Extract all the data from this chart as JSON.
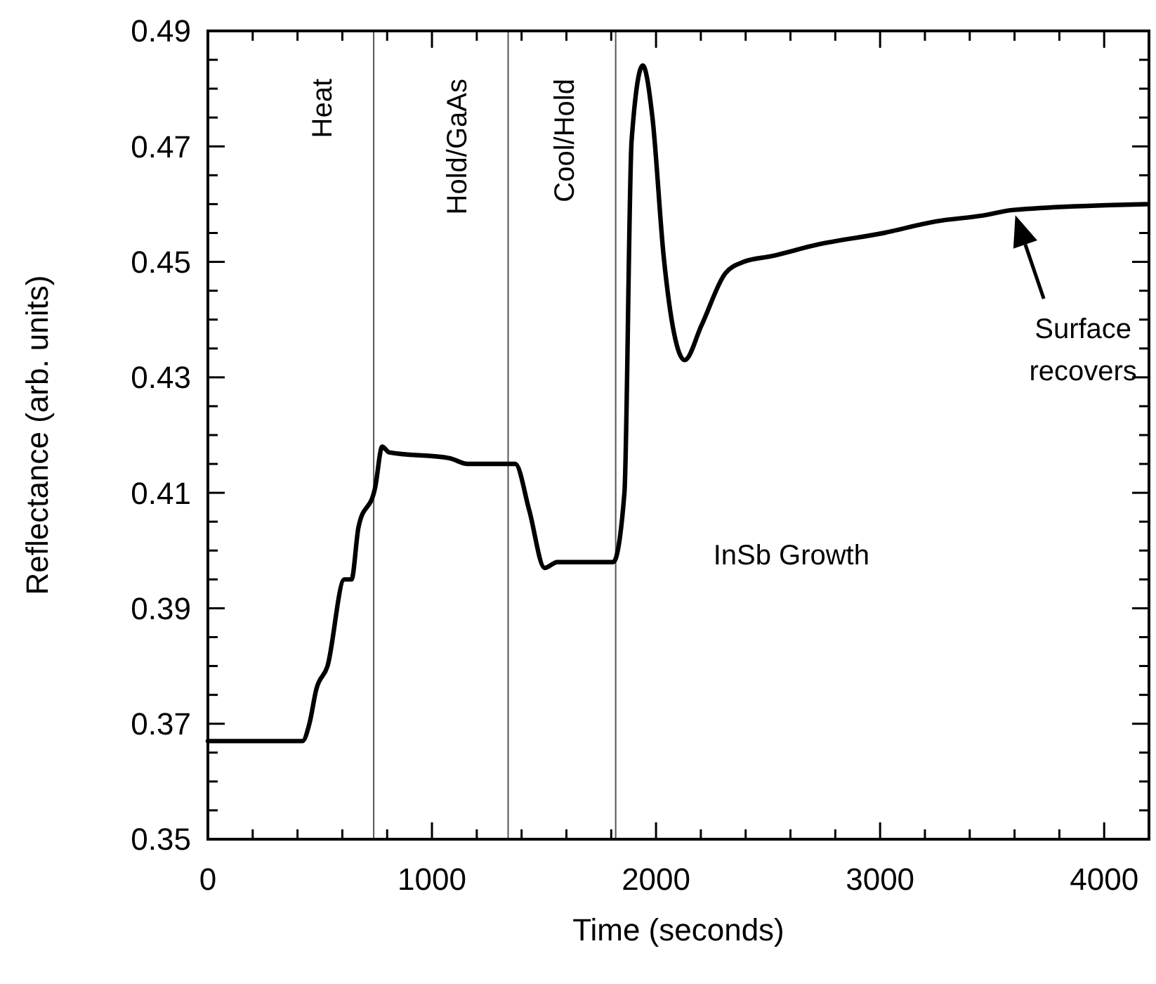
{
  "chart_data": {
    "type": "line",
    "xlabel": "Time (seconds)",
    "ylabel": "Reflectance (arb. units)",
    "xlim": [
      0,
      4200
    ],
    "ylim": [
      0.35,
      0.49
    ],
    "xticks": [
      0,
      {
        "value": 200,
        "label": null
      },
      {
        "value": 400,
        "label": null
      },
      {
        "value": 600,
        "label": null
      },
      {
        "value": 800,
        "label": null
      },
      1000,
      {
        "value": 1200,
        "label": null
      },
      {
        "value": 1400,
        "label": null
      },
      {
        "value": 1600,
        "label": null
      },
      {
        "value": 1800,
        "label": null
      },
      2000,
      {
        "value": 2200,
        "label": null
      },
      {
        "value": 2400,
        "label": null
      },
      {
        "value": 2600,
        "label": null
      },
      {
        "value": 2800,
        "label": null
      },
      3000,
      {
        "value": 3200,
        "label": null
      },
      {
        "value": 3400,
        "label": null
      },
      {
        "value": 3600,
        "label": null
      },
      {
        "value": 3800,
        "label": null
      },
      4000,
      {
        "value": 4200,
        "label": null
      }
    ],
    "yticks": [
      0.35,
      {
        "value": 0.355,
        "label": null
      },
      {
        "value": 0.36,
        "label": null
      },
      {
        "value": 0.365,
        "label": null
      },
      0.37,
      {
        "value": 0.375,
        "label": null
      },
      {
        "value": 0.38,
        "label": null
      },
      {
        "value": 0.385,
        "label": null
      },
      0.39,
      {
        "value": 0.395,
        "label": null
      },
      {
        "value": 0.4,
        "label": null
      },
      {
        "value": 0.405,
        "label": null
      },
      0.41,
      {
        "value": 0.415,
        "label": null
      },
      {
        "value": 0.42,
        "label": null
      },
      {
        "value": 0.425,
        "label": null
      },
      0.43,
      {
        "value": 0.435,
        "label": null
      },
      {
        "value": 0.44,
        "label": null
      },
      {
        "value": 0.445,
        "label": null
      },
      0.45,
      {
        "value": 0.455,
        "label": null
      },
      {
        "value": 0.46,
        "label": null
      },
      {
        "value": 0.465,
        "label": null
      },
      0.47,
      {
        "value": 0.475,
        "label": null
      },
      {
        "value": 0.48,
        "label": null
      },
      {
        "value": 0.485,
        "label": null
      },
      0.49
    ],
    "grid": false,
    "marker": "none",
    "line_style": "solid",
    "ref_lines": [
      {
        "axis": "x",
        "value": 740,
        "label": "Heat",
        "color": "#555555"
      },
      {
        "axis": "x",
        "value": 1340,
        "label": "Hold/GaAs",
        "color": "#555555"
      },
      {
        "axis": "x",
        "value": 1820,
        "label": "Cool/Hold",
        "color": "#555555"
      }
    ],
    "annotations": [
      "InSb Growth",
      "Surface recovers"
    ],
    "series": [
      {
        "color": "#000000",
        "x": [
          0,
          266,
          422,
          453,
          484,
          534,
          609,
          641,
          672,
          747,
          778,
          809,
          1078,
          1159,
          1372,
          1434,
          1503,
          1559,
          1809,
          1859,
          1891,
          1941,
          1984,
          2034,
          2128,
          2203,
          2309,
          2391,
          2516,
          2722,
          3016,
          3247,
          3453,
          3597,
          4190
        ],
        "values": [
          0.367,
          0.367,
          0.367,
          0.37,
          0.376,
          0.38,
          0.395,
          0.395,
          0.404,
          0.411,
          0.418,
          0.417,
          0.416,
          0.415,
          0.415,
          0.407,
          0.397,
          0.398,
          0.398,
          0.41,
          0.471,
          0.484,
          0.475,
          0.451,
          0.433,
          0.439,
          0.448,
          0.45,
          0.451,
          0.453,
          0.455,
          0.457,
          0.458,
          0.459,
          0.46
        ]
      }
    ]
  }
}
